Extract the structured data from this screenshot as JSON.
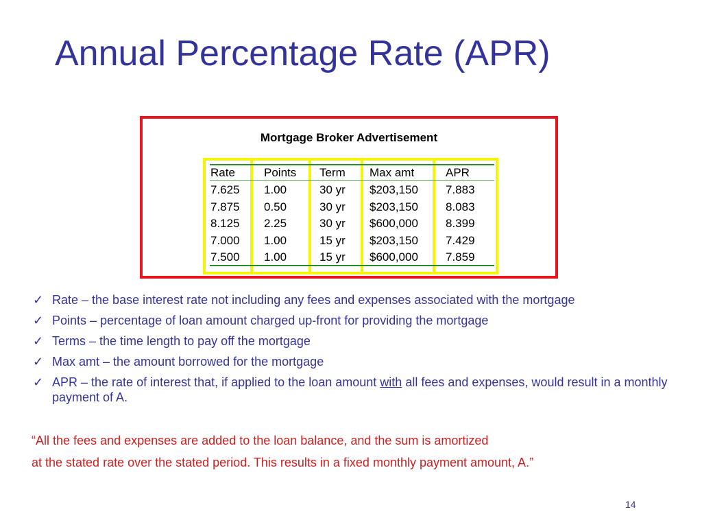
{
  "title": "Annual Percentage Rate (APR)",
  "ad": {
    "title": "Mortgage Broker Advertisement",
    "headers": [
      "Rate",
      "Points",
      "Term",
      "Max amt",
      "APR"
    ],
    "rows": [
      [
        "7.625",
        "1.00",
        "30 yr",
        "$203,150",
        "7.883"
      ],
      [
        "7.875",
        "0.50",
        "30 yr",
        "$203,150",
        "8.083"
      ],
      [
        "8.125",
        "2.25",
        "30 yr",
        "$600,000",
        "8.399"
      ],
      [
        "7.000",
        "1.00",
        "15 yr",
        "$203,150",
        "7.429"
      ],
      [
        "7.500",
        "1.00",
        "15 yr",
        "$600,000",
        "7.859"
      ]
    ]
  },
  "bullets": [
    {
      "text": "Rate   – the base interest rate not including any fees and expenses associated with the mortgage"
    },
    {
      "text": "Points – percentage of loan amount charged up-front for providing the mortgage"
    },
    {
      "text": "Terms – the time length to pay off the mortgage"
    },
    {
      "text": "Max amt – the amount borrowed for the mortgage"
    },
    {
      "pre": "APR – the rate of interest that, if applied to the loan amount ",
      "em": "with",
      "post": " all fees and expenses, would result in a monthly payment of A."
    }
  ],
  "check_icon": "✓",
  "quote": {
    "line1": "“All the fees and expenses are added to the loan balance, and the sum is amortized",
    "line2": "at the stated rate over the stated period. This results in a fixed monthly payment amount, A.”"
  },
  "page_number": "14"
}
